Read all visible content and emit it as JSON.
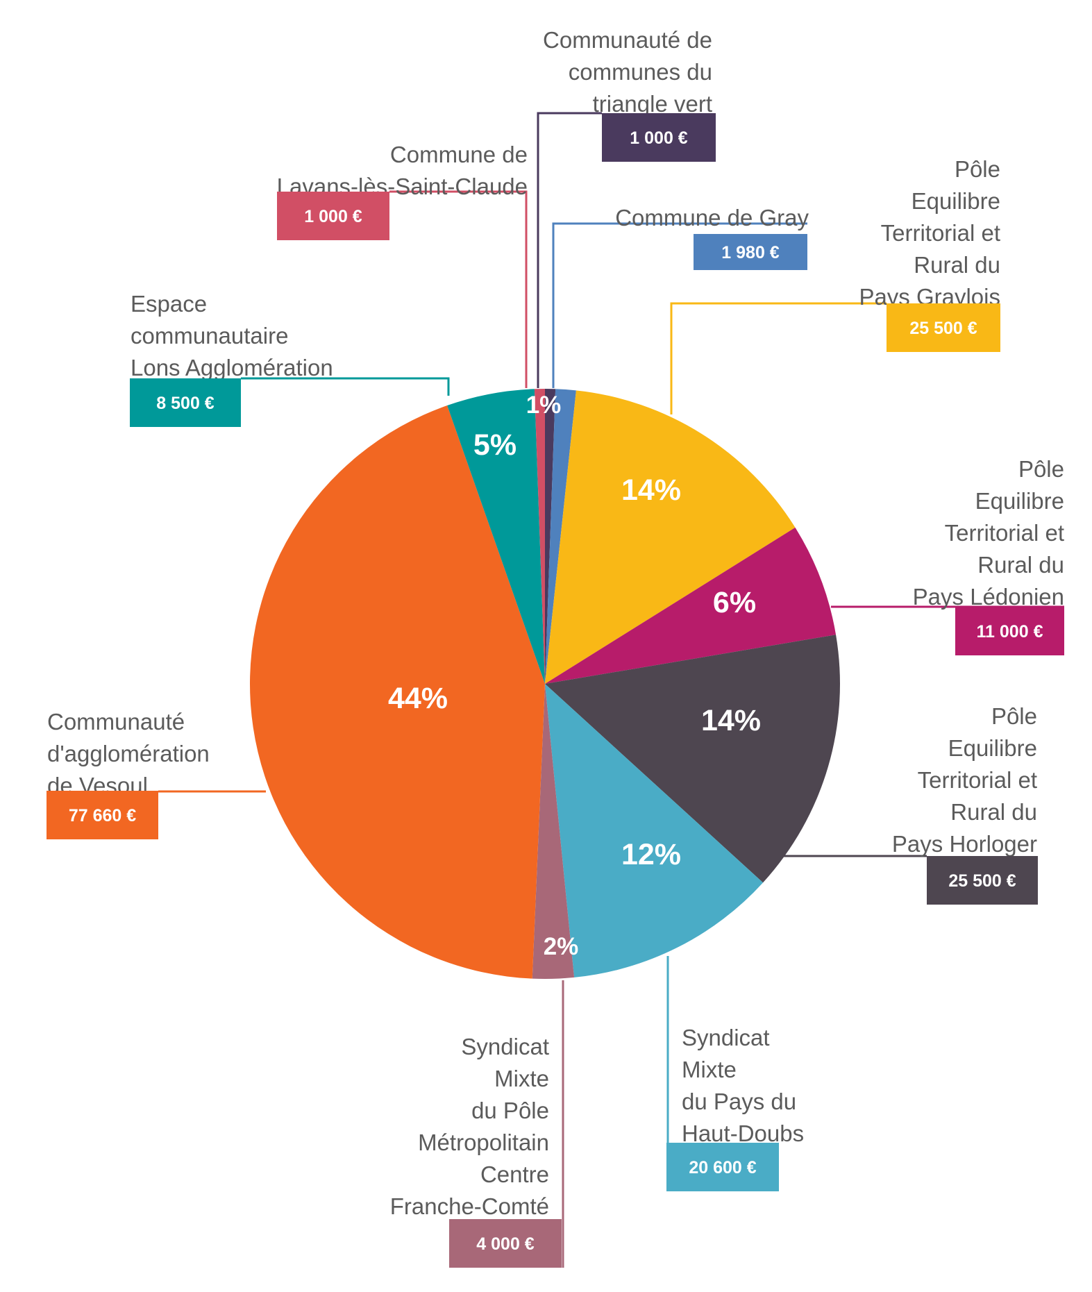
{
  "chart_data": {
    "type": "pie",
    "unit": "€",
    "slices": [
      {
        "label": "Communauté de communes du triangle vert",
        "lines": [
          "Communauté de",
          "communes du",
          "triangle vert"
        ],
        "value": 1000,
        "amount": "1 000 €",
        "percent": "1%",
        "color": "#4a3a5e"
      },
      {
        "label": "Commune de Gray",
        "lines": [
          "Commune de Gray"
        ],
        "value": 1980,
        "amount": "1 980 €",
        "percent": "",
        "color": "#4f81bd"
      },
      {
        "label": "Pôle Equilibre Territorial et Rural du Pays Graylois",
        "lines": [
          "Pôle",
          "Equilibre",
          "Territorial et",
          "Rural du",
          "Pays Graylois"
        ],
        "value": 25500,
        "amount": "25 500 €",
        "percent": "14%",
        "color": "#f9b816"
      },
      {
        "label": "Pôle Equilibre Territorial et Rural du Pays Lédonien",
        "lines": [
          "Pôle",
          "Equilibre",
          "Territorial et",
          "Rural du",
          "Pays Lédonien"
        ],
        "value": 11000,
        "amount": "11 000 €",
        "percent": "6%",
        "color": "#b71c6a"
      },
      {
        "label": "Pôle Equilibre Territorial et Rural du Pays Horloger",
        "lines": [
          "Pôle",
          "Equilibre",
          "Territorial et",
          "Rural du",
          "Pays Horloger"
        ],
        "value": 25500,
        "amount": "25 500 €",
        "percent": "14%",
        "color": "#4e4650"
      },
      {
        "label": "Syndicat Mixte du Pays du Haut-Doubs",
        "lines": [
          "Syndicat",
          "Mixte",
          "du Pays du",
          "Haut-Doubs"
        ],
        "value": 20600,
        "amount": "20 600 €",
        "percent": "12%",
        "color": "#4aacc6"
      },
      {
        "label": "Syndicat Mixte du Pôle Métropolitain Centre Franche-Comté",
        "lines": [
          "Syndicat",
          "Mixte",
          "du Pôle",
          "Métropolitain",
          "Centre",
          "Franche-Comté"
        ],
        "value": 4000,
        "amount": "4 000 €",
        "percent": "2%",
        "color": "#a86878"
      },
      {
        "label": "Communauté d'agglomération de Vesoul",
        "lines": [
          "Communauté",
          "d'agglomération",
          "de Vesoul"
        ],
        "value": 77660,
        "amount": "77 660 €",
        "percent": "44%",
        "color": "#f26722"
      },
      {
        "label": "Espace communautaire Lons Agglomération",
        "lines": [
          "Espace",
          "communautaire",
          "Lons Agglomération"
        ],
        "value": 8500,
        "amount": "8 500 €",
        "percent": "5%",
        "color": "#009999"
      },
      {
        "label": "Commune de Lavans-lès-Saint-Claude",
        "lines": [
          "Commune de",
          "Lavans-lès-Saint-Claude"
        ],
        "value": 1000,
        "amount": "1 000 €",
        "percent": "",
        "color": "#d14f65"
      }
    ]
  }
}
